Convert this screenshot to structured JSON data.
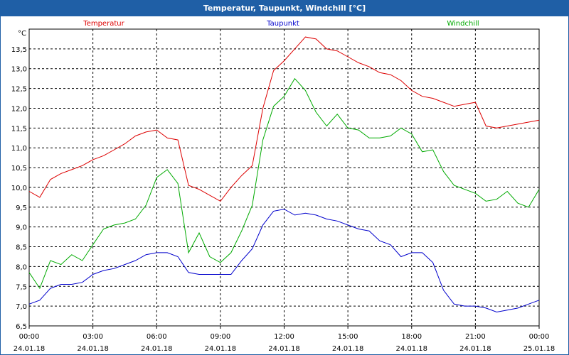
{
  "window": {
    "title": "Temperatur, Taupunkt, Windchill [°C]"
  },
  "chart_data": {
    "type": "line",
    "title": "Temperatur, Taupunkt, Windchill [°C]",
    "ylabel": "°C",
    "xlabel": "",
    "ylim": [
      6.5,
      14.0
    ],
    "xlim_hours": [
      0,
      24
    ],
    "grid": true,
    "grid_style": "dashed",
    "legend_placement": "top",
    "y_ticks": [
      "6,5",
      "7,0",
      "7,5",
      "8,0",
      "8,5",
      "9,0",
      "9,5",
      "10,0",
      "10,5",
      "11,0",
      "11,5",
      "12,0",
      "12,5",
      "13,0",
      "13,5"
    ],
    "x_ticks": [
      {
        "time": "00:00",
        "date": "24.01.18"
      },
      {
        "time": "03:00",
        "date": "24.01.18"
      },
      {
        "time": "06:00",
        "date": "24.01.18"
      },
      {
        "time": "09:00",
        "date": "24.01.18"
      },
      {
        "time": "12:00",
        "date": "24.01.18"
      },
      {
        "time": "15:00",
        "date": "24.01.18"
      },
      {
        "time": "18:00",
        "date": "24.01.18"
      },
      {
        "time": "21:00",
        "date": "24.01.18"
      },
      {
        "time": "00:00",
        "date": "25.01.18"
      }
    ],
    "x_hours": [
      0,
      0.5,
      1,
      1.5,
      2,
      2.5,
      3,
      3.5,
      4,
      4.5,
      5,
      5.5,
      6,
      6.5,
      7,
      7.5,
      8,
      8.5,
      9,
      9.5,
      10,
      10.5,
      11,
      11.5,
      12,
      12.5,
      13,
      13.5,
      14,
      14.5,
      15,
      15.5,
      16,
      16.5,
      17,
      17.5,
      18,
      18.5,
      19,
      19.5,
      20,
      20.5,
      21,
      21.5,
      22,
      22.5,
      23,
      23.5,
      24
    ],
    "series": [
      {
        "name": "Temperatur",
        "color": "#dd0000",
        "values": [
          9.9,
          9.75,
          10.2,
          10.35,
          10.45,
          10.55,
          10.7,
          10.8,
          10.95,
          11.1,
          11.3,
          11.4,
          11.45,
          11.25,
          11.2,
          10.05,
          9.95,
          9.8,
          9.65,
          10.0,
          10.3,
          10.55,
          12.0,
          12.95,
          13.2,
          13.5,
          13.8,
          13.75,
          13.5,
          13.45,
          13.3,
          13.15,
          13.05,
          12.9,
          12.85,
          12.7,
          12.45,
          12.3,
          12.25,
          12.15,
          12.05,
          12.1,
          12.15,
          11.55,
          11.5,
          11.55,
          11.6,
          11.65,
          11.7
        ]
      },
      {
        "name": "Taupunkt",
        "color": "#0000cc",
        "values": [
          7.05,
          7.15,
          7.45,
          7.55,
          7.55,
          7.6,
          7.8,
          7.9,
          7.95,
          8.05,
          8.15,
          8.3,
          8.35,
          8.35,
          8.25,
          7.85,
          7.8,
          7.8,
          7.8,
          7.8,
          8.15,
          8.45,
          9.05,
          9.4,
          9.45,
          9.3,
          9.35,
          9.3,
          9.2,
          9.15,
          9.05,
          8.95,
          8.9,
          8.65,
          8.55,
          8.25,
          8.35,
          8.35,
          8.1,
          7.4,
          7.05,
          7.0,
          7.0,
          6.95,
          6.85,
          6.9,
          6.95,
          7.05,
          7.15
        ]
      },
      {
        "name": "Windchill",
        "color": "#00aa00",
        "values": [
          7.85,
          7.45,
          8.15,
          8.05,
          8.3,
          8.15,
          8.55,
          8.95,
          9.05,
          9.1,
          9.2,
          9.55,
          10.25,
          10.45,
          10.1,
          8.35,
          8.85,
          8.25,
          8.1,
          8.35,
          8.9,
          9.55,
          11.2,
          12.05,
          12.3,
          12.75,
          12.45,
          11.9,
          11.55,
          11.85,
          11.5,
          11.45,
          11.25,
          11.25,
          11.3,
          11.5,
          11.35,
          10.9,
          10.95,
          10.4,
          10.05,
          9.95,
          9.85,
          9.65,
          9.7,
          9.9,
          9.6,
          9.5,
          9.95
        ]
      }
    ]
  }
}
